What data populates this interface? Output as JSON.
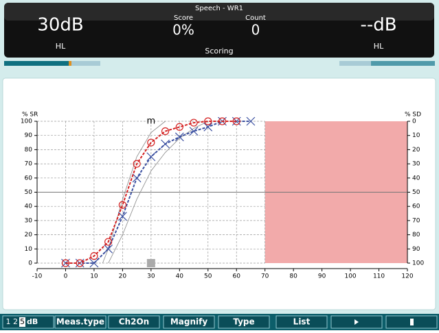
{
  "header": {
    "title": "Speech - WR1",
    "left_level": "30dB",
    "left_unit": "HL",
    "score_label": "Score",
    "score": "0%",
    "count_label": "Count",
    "count": "0",
    "mode": "Scoring",
    "right_level": "--dB",
    "right_unit": "HL"
  },
  "chart_data": {
    "type": "line",
    "ylabel": "% SR",
    "y2label": "% SD",
    "annotation": "m",
    "annotation_x": 30,
    "xlim": [
      -10,
      120
    ],
    "xticks": [
      -10,
      0,
      10,
      20,
      30,
      40,
      50,
      60,
      70,
      80,
      90,
      100,
      110,
      120
    ],
    "ylim": [
      0,
      100
    ],
    "yticks": [
      0,
      10,
      20,
      30,
      40,
      50,
      60,
      70,
      80,
      90,
      100
    ],
    "y2lim": [
      100,
      0
    ],
    "y2ticks": [
      0,
      10,
      20,
      30,
      40,
      50,
      60,
      70,
      80,
      90,
      100
    ],
    "grid": true,
    "reference_y": 50,
    "shade": [
      70,
      120
    ],
    "shade_color": "#f2aaaa",
    "series": [
      {
        "color": "#888888",
        "marker": "none",
        "x": [
          13,
          15,
          20,
          25,
          30,
          35
        ],
        "values": [
          0,
          10,
          45,
          75,
          92,
          100
        ]
      },
      {
        "color": "#888888",
        "marker": "none",
        "x": [
          15,
          20,
          25,
          30,
          35,
          40,
          45,
          50
        ],
        "values": [
          0,
          20,
          45,
          65,
          78,
          88,
          95,
          100
        ]
      },
      {
        "color": "#3a4fa0",
        "marker": "x",
        "x": [
          0,
          5,
          10,
          15,
          20,
          25,
          30,
          35,
          40,
          45,
          50,
          55,
          60,
          65
        ],
        "values": [
          0,
          0,
          0,
          10,
          33,
          60,
          75,
          84,
          89,
          93,
          96,
          100,
          100,
          100
        ]
      },
      {
        "color": "#d42020",
        "marker": "o",
        "x": [
          0,
          5,
          10,
          15,
          20,
          25,
          30,
          35,
          40,
          45,
          50,
          55,
          60
        ],
        "values": [
          0,
          0,
          5,
          15,
          41,
          70,
          85,
          93,
          96,
          99,
          100,
          100,
          100
        ]
      }
    ]
  },
  "buttons": {
    "step": [
      "1 2",
      "5",
      "dB"
    ],
    "labels": [
      "Meas.type",
      "Ch2On",
      "Magnify",
      "Type",
      "List"
    ]
  }
}
